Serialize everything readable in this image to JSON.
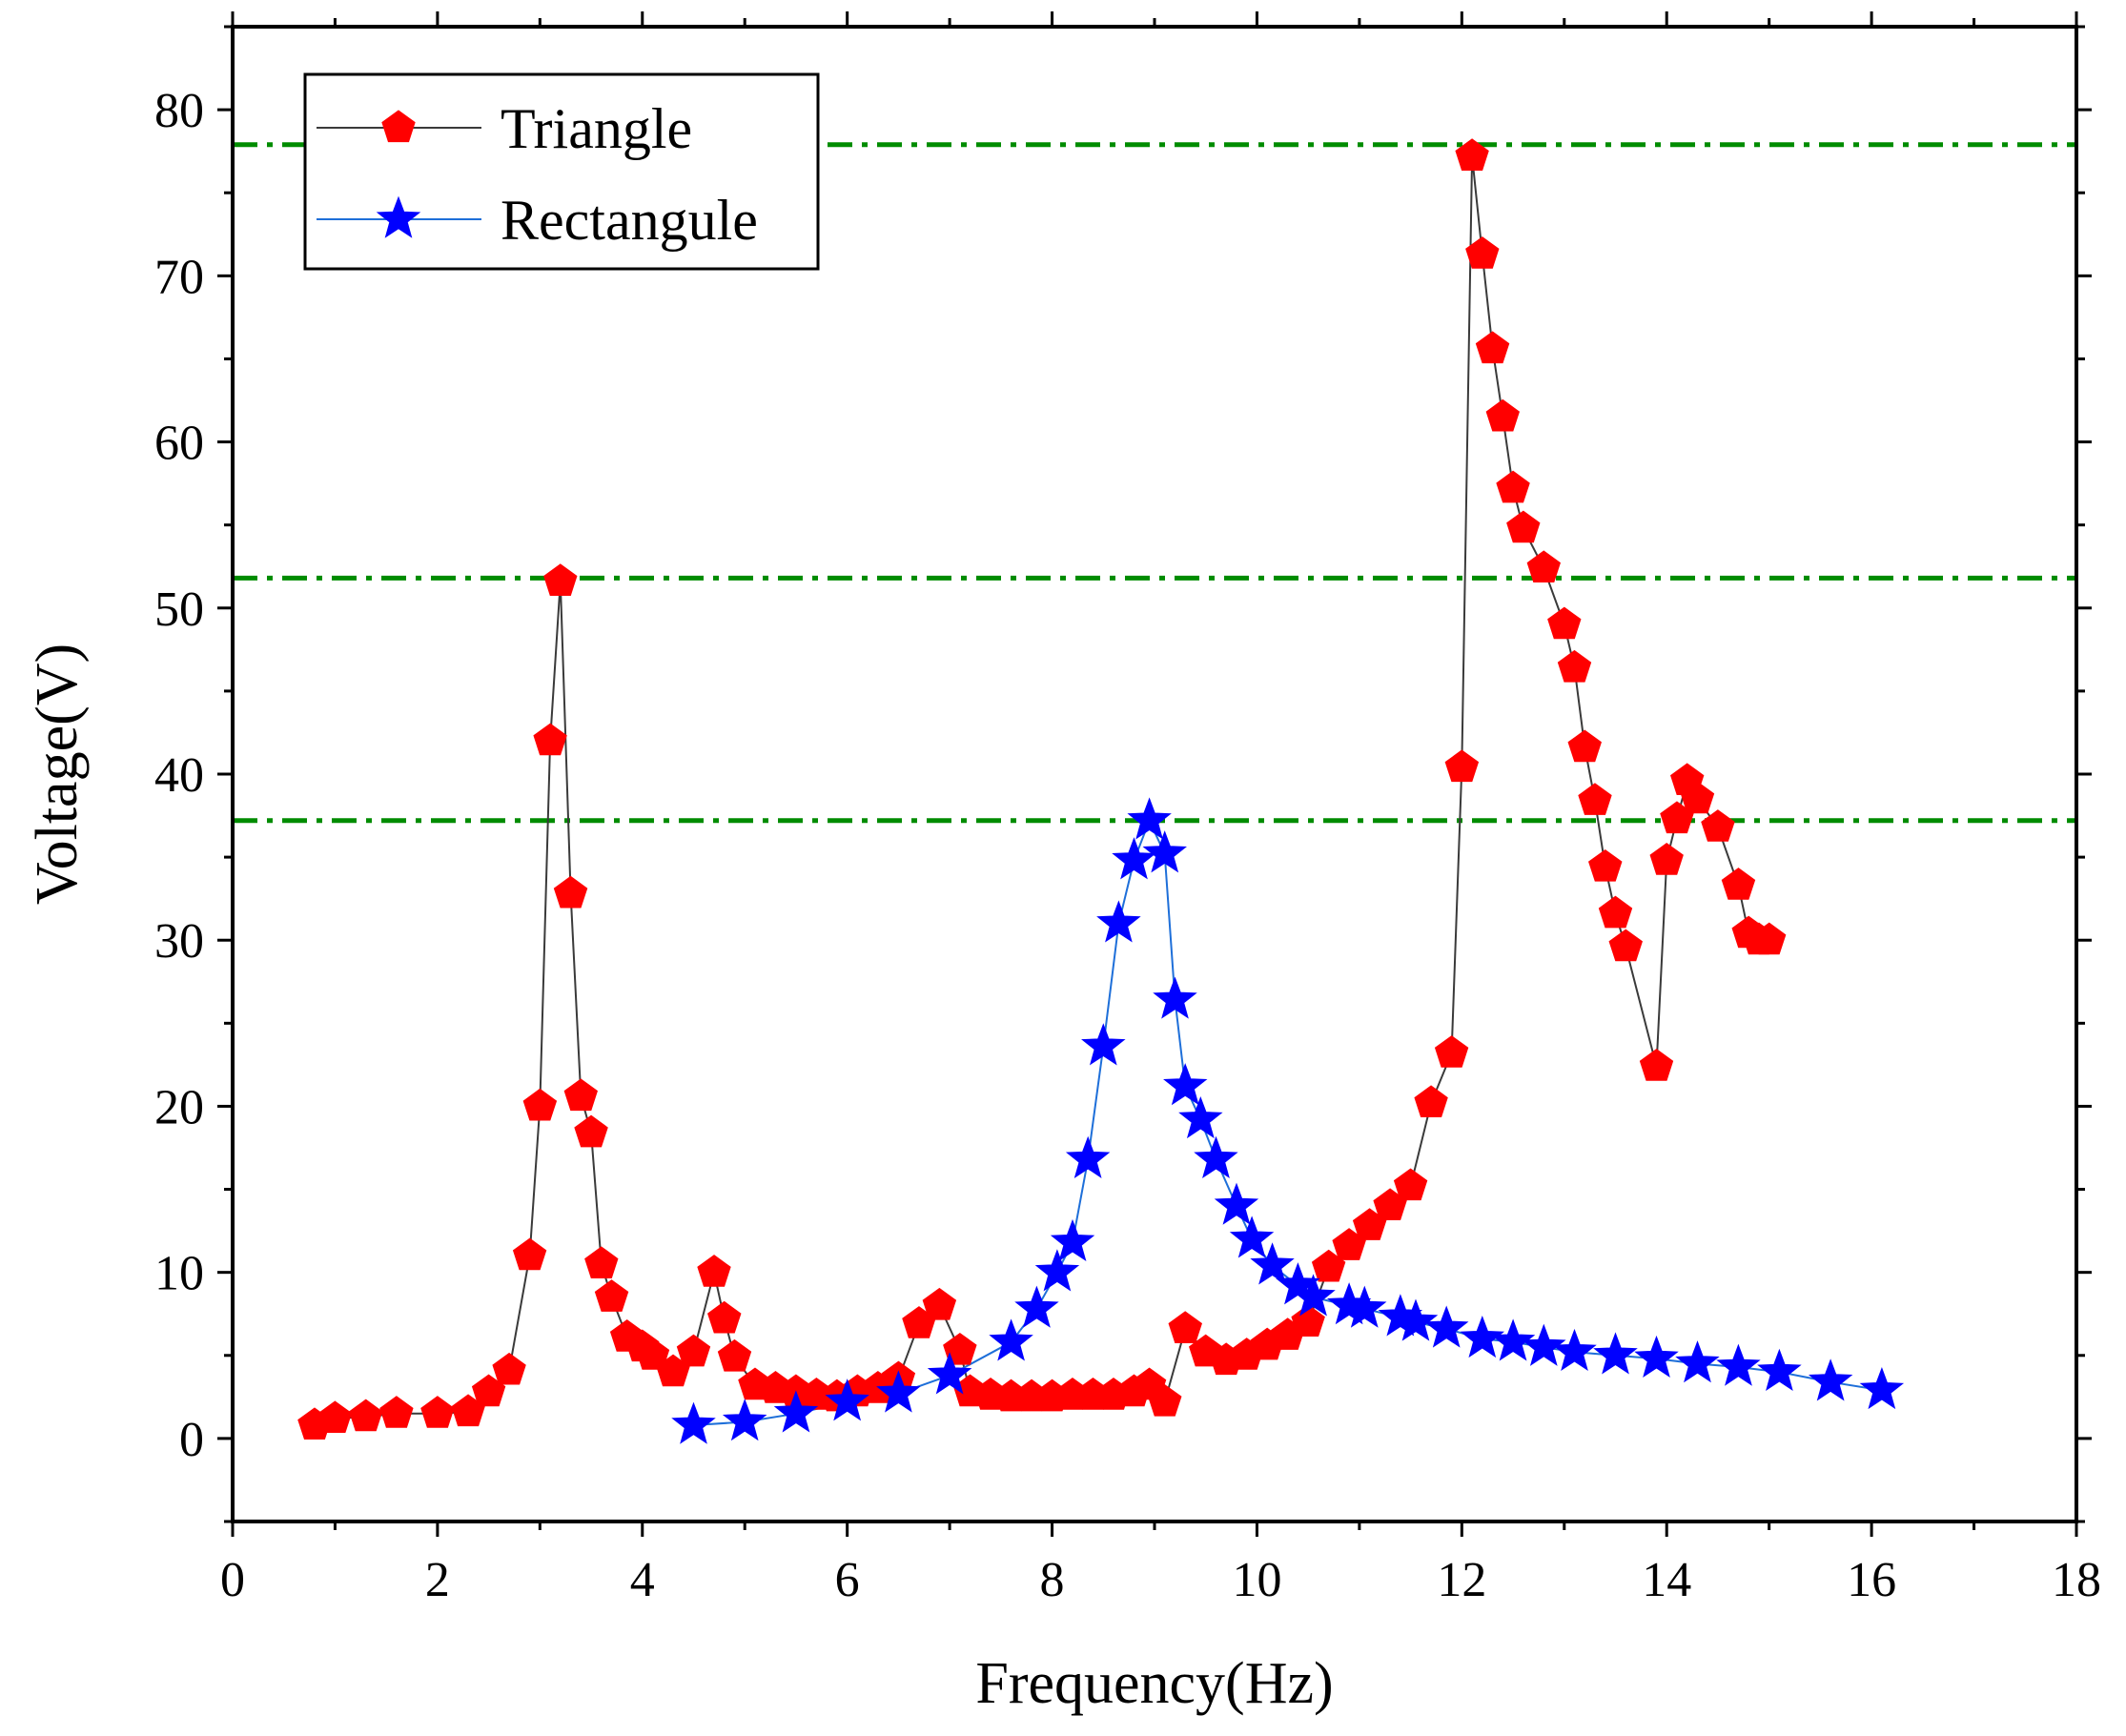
{
  "chart_data": {
    "type": "line",
    "xlabel": "Frequency(Hz)",
    "ylabel": "Voltage(V)",
    "xlim": [
      0,
      18
    ],
    "ylim": [
      -5,
      85
    ],
    "xticks": [
      "0",
      "2",
      "4",
      "6",
      "8",
      "10",
      "12",
      "14",
      "16",
      "18"
    ],
    "yticks": [
      "0",
      "10",
      "20",
      "30",
      "40",
      "50",
      "60",
      "70",
      "80"
    ],
    "legend_position": "top-left",
    "series": [
      {
        "name": "Triangle",
        "color": "#ff0000",
        "line_color": "#3a3a3a",
        "marker": "pentagon",
        "x": [
          0.8,
          1.0,
          1.3,
          1.6,
          2.0,
          2.3,
          2.5,
          2.7,
          2.9,
          3.0,
          3.1,
          3.2,
          3.3,
          3.4,
          3.5,
          3.6,
          3.7,
          3.85,
          4.0,
          4.1,
          4.3,
          4.5,
          4.7,
          4.8,
          4.9,
          5.1,
          5.3,
          5.5,
          5.7,
          5.9,
          6.1,
          6.3,
          6.5,
          6.7,
          6.9,
          7.1,
          7.2,
          7.4,
          7.6,
          7.8,
          8.0,
          8.2,
          8.4,
          8.6,
          8.8,
          8.95,
          9.1,
          9.3,
          9.5,
          9.7,
          9.9,
          10.1,
          10.3,
          10.5,
          10.7,
          10.9,
          11.1,
          11.3,
          11.5,
          11.7,
          11.9,
          12.0,
          12.1,
          12.2,
          12.3,
          12.4,
          12.5,
          12.6,
          12.8,
          13.0,
          13.1,
          13.2,
          13.3,
          13.4,
          13.5,
          13.6,
          13.9,
          14.0,
          14.1,
          14.2,
          14.3,
          14.5,
          14.7,
          14.8,
          14.9,
          15.0
        ],
        "y": [
          0.8,
          1.2,
          1.3,
          1.5,
          1.5,
          1.6,
          2.8,
          4.1,
          11.0,
          20.0,
          42.0,
          51.6,
          32.8,
          20.6,
          18.4,
          10.5,
          8.5,
          6.1,
          5.5,
          5.0,
          4.0,
          5.2,
          10.0,
          7.2,
          4.9,
          3.2,
          3.0,
          2.8,
          2.6,
          2.5,
          2.8,
          3.0,
          3.6,
          6.9,
          8.0,
          5.3,
          2.8,
          2.6,
          2.5,
          2.5,
          2.5,
          2.6,
          2.6,
          2.6,
          2.8,
          3.2,
          2.2,
          6.6,
          5.2,
          4.7,
          5.0,
          5.6,
          6.2,
          7.0,
          10.3,
          11.6,
          12.8,
          14.0,
          15.2,
          20.2,
          23.2,
          40.4,
          77.2,
          71.3,
          65.6,
          61.5,
          57.2,
          54.8,
          52.4,
          49.0,
          46.4,
          41.6,
          38.4,
          34.4,
          31.6,
          29.6,
          22.4,
          34.8,
          37.3,
          39.6,
          38.5,
          36.8,
          33.3,
          30.4,
          30.0,
          30.0
        ]
      },
      {
        "name": "Rectangule",
        "color": "#0000ff",
        "line_color": "#1e6fd9",
        "marker": "star",
        "x": [
          4.5,
          5.0,
          5.5,
          6.0,
          6.5,
          7.0,
          7.6,
          7.85,
          8.05,
          8.2,
          8.35,
          8.5,
          8.65,
          8.8,
          8.95,
          9.1,
          9.2,
          9.3,
          9.45,
          9.6,
          9.8,
          9.95,
          10.15,
          10.4,
          10.55,
          10.9,
          11.05,
          11.4,
          11.55,
          11.85,
          12.2,
          12.5,
          12.8,
          13.1,
          13.5,
          13.9,
          14.3,
          14.7,
          15.1,
          15.6,
          16.1
        ],
        "y": [
          0.8,
          1.0,
          1.5,
          2.2,
          2.7,
          3.8,
          5.8,
          7.8,
          10.0,
          11.8,
          16.8,
          23.6,
          31.0,
          34.8,
          37.2,
          35.2,
          26.4,
          21.2,
          19.2,
          16.8,
          14.0,
          12.0,
          10.4,
          9.2,
          8.5,
          8.0,
          7.8,
          7.3,
          7.0,
          6.6,
          6.0,
          5.8,
          5.5,
          5.2,
          5.0,
          4.8,
          4.5,
          4.3,
          4.0,
          3.4,
          2.9
        ]
      }
    ],
    "reference_lines": [
      {
        "y": 77.9,
        "color": "#008c00",
        "style": "dash-dot"
      },
      {
        "y": 51.8,
        "color": "#008c00",
        "style": "dash-dot"
      },
      {
        "y": 37.2,
        "color": "#008c00",
        "style": "dash-dot"
      }
    ]
  }
}
